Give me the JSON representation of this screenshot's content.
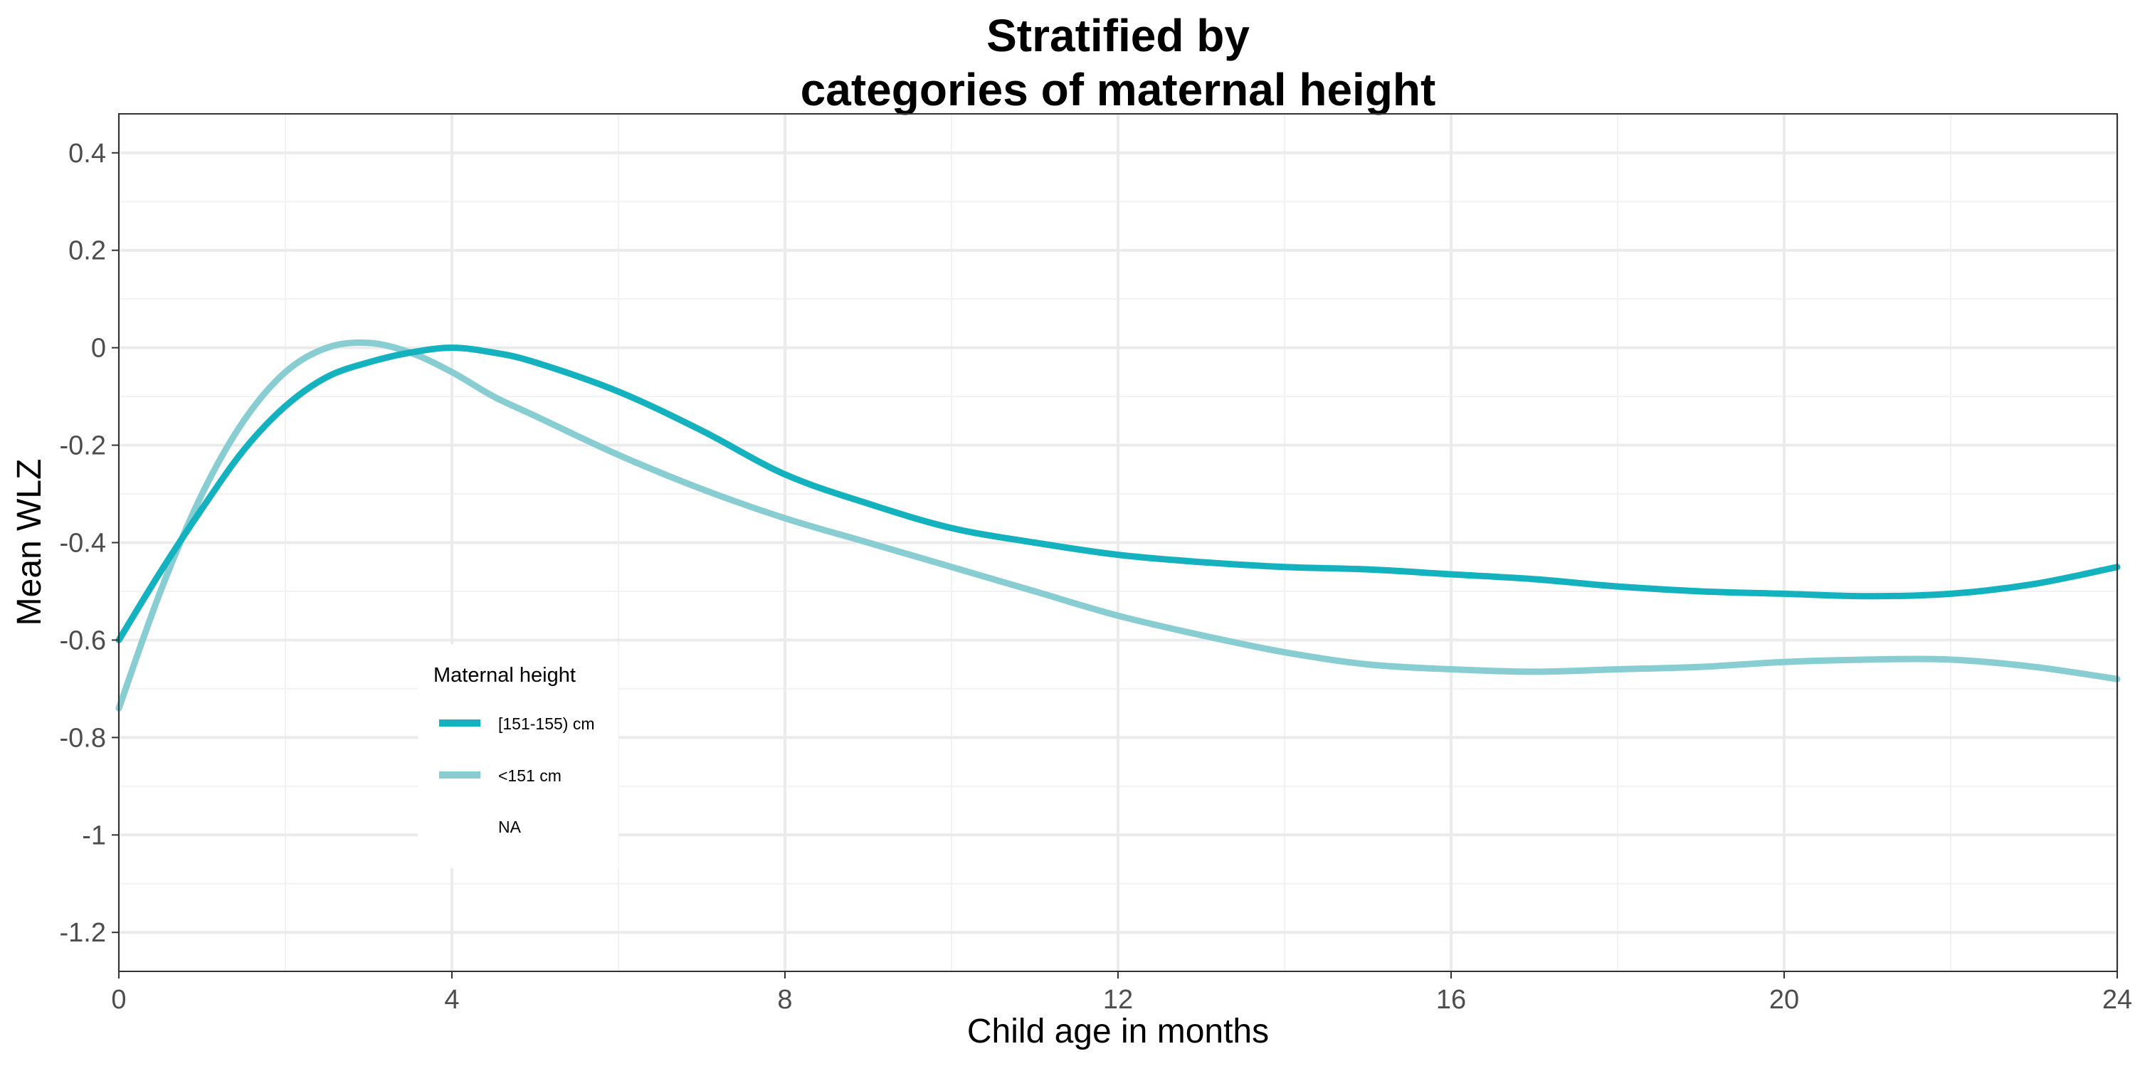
{
  "chart_data": {
    "type": "line",
    "title": "Stratified by\ncategories of maternal height",
    "title_lines": [
      "Stratified by",
      "categories of maternal height"
    ],
    "xlabel": "Child age in months",
    "ylabel": "Mean WLZ",
    "xlim": [
      0,
      24
    ],
    "ylim": [
      -1.28,
      0.48
    ],
    "x_ticks": [
      0,
      4,
      8,
      12,
      16,
      20,
      24
    ],
    "x_tick_labels": [
      "0",
      "4",
      "8",
      "12",
      "16",
      "20",
      "24"
    ],
    "y_ticks": [
      0.4,
      0.2,
      0,
      -0.2,
      -0.4,
      -0.6,
      -0.8,
      -1,
      -1.2
    ],
    "y_tick_labels": [
      "0.4",
      "0.2",
      "0",
      "-0.2",
      "-0.4",
      "-0.6",
      "-0.8",
      "-1",
      "-1.2"
    ],
    "grid": true,
    "legend": {
      "title": "Maternal height",
      "placement": "inside-bottom-left",
      "entries": [
        "[151-155) cm",
        "<151 cm",
        "NA"
      ]
    },
    "series": [
      {
        "name": "[151-155) cm",
        "color": "#14b2bf",
        "x": [
          0,
          0.5,
          1,
          1.5,
          2,
          2.5,
          3,
          3.5,
          4,
          4.5,
          5,
          6,
          7,
          8,
          9,
          10,
          11,
          12,
          13,
          14,
          15,
          16,
          17,
          18,
          19,
          20,
          21,
          22,
          23,
          24
        ],
        "y": [
          -0.6,
          -0.46,
          -0.33,
          -0.21,
          -0.12,
          -0.06,
          -0.03,
          -0.01,
          0.0,
          -0.01,
          -0.03,
          -0.09,
          -0.17,
          -0.26,
          -0.32,
          -0.37,
          -0.4,
          -0.425,
          -0.44,
          -0.45,
          -0.455,
          -0.465,
          -0.475,
          -0.49,
          -0.5,
          -0.505,
          -0.51,
          -0.505,
          -0.485,
          -0.45
        ]
      },
      {
        "name": "<151 cm",
        "color": "#87cdd2",
        "x": [
          0,
          0.5,
          1,
          1.5,
          2,
          2.5,
          3,
          3.5,
          4,
          4.5,
          5,
          6,
          7,
          8,
          9,
          10,
          11,
          12,
          13,
          14,
          15,
          16,
          17,
          18,
          19,
          20,
          21,
          22,
          23,
          24
        ],
        "y": [
          -0.74,
          -0.5,
          -0.3,
          -0.15,
          -0.05,
          0.0,
          0.01,
          -0.01,
          -0.05,
          -0.1,
          -0.14,
          -0.22,
          -0.29,
          -0.35,
          -0.4,
          -0.45,
          -0.5,
          -0.55,
          -0.59,
          -0.625,
          -0.65,
          -0.66,
          -0.665,
          -0.66,
          -0.655,
          -0.645,
          -0.64,
          -0.64,
          -0.655,
          -0.68
        ]
      }
    ]
  }
}
